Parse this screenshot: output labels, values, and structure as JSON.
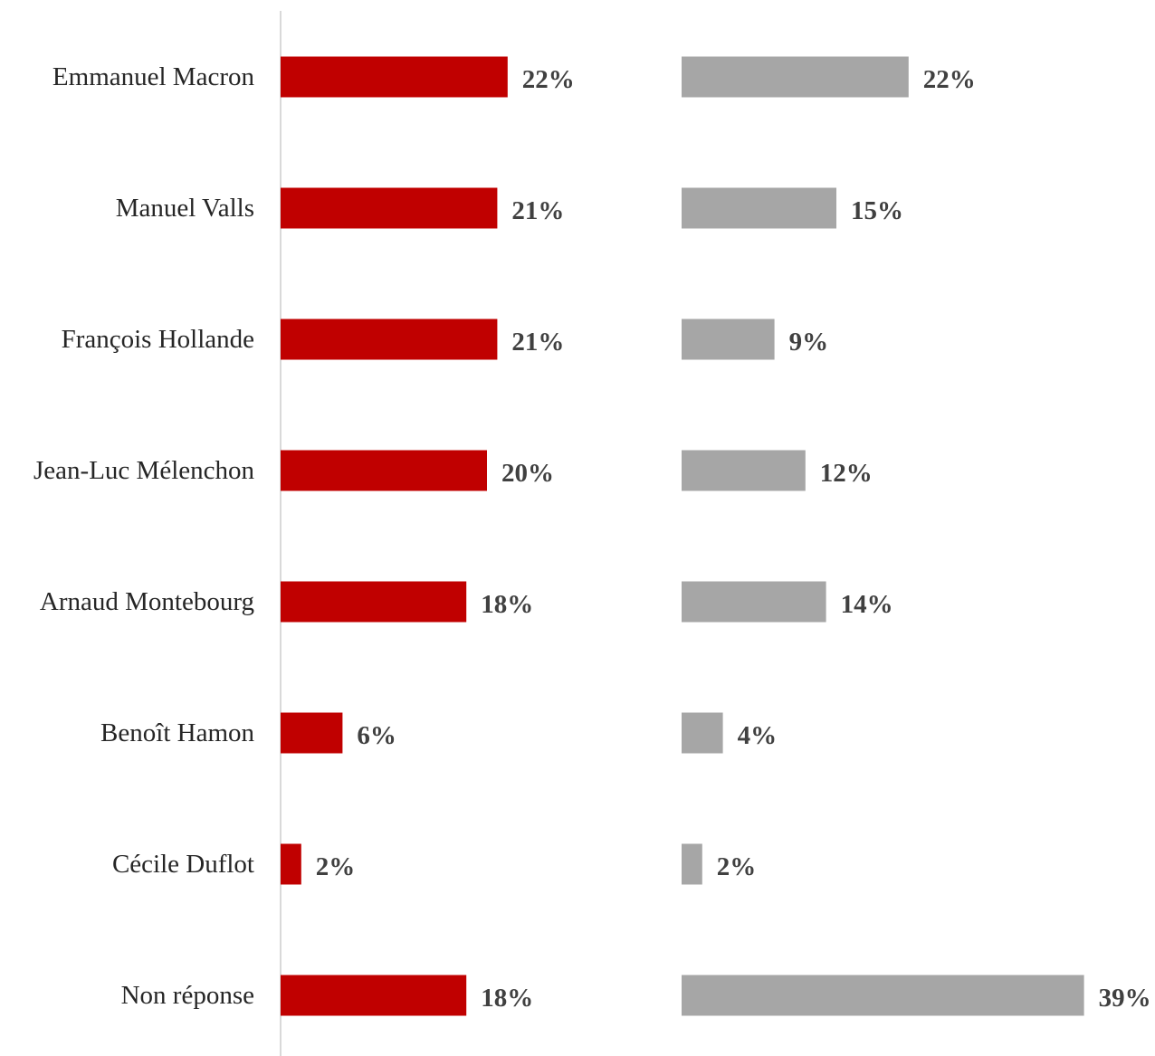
{
  "chart_data": {
    "type": "bar",
    "orientation": "horizontal",
    "categories": [
      "Emmanuel Macron",
      "Manuel Valls",
      "François Hollande",
      "Jean-Luc Mélenchon",
      "Arnaud Montebourg",
      "Benoît Hamon",
      "Cécile Duflot",
      "Non réponse"
    ],
    "series": [
      {
        "values": [
          22,
          21,
          21,
          20,
          18,
          6,
          2,
          18
        ],
        "labels": [
          "22%",
          "21%",
          "21%",
          "20%",
          "18%",
          "6%",
          "2%",
          "18%"
        ],
        "color": "#c00000"
      },
      {
        "values": [
          22,
          15,
          9,
          12,
          14,
          4,
          2,
          39
        ],
        "labels": [
          "22%",
          "15%",
          "9%",
          "12%",
          "14%",
          "4%",
          "2%",
          "39%"
        ],
        "color": "#a6a6a6"
      }
    ],
    "title": "",
    "xlabel": "",
    "ylabel": "",
    "unit": "%",
    "grid": false,
    "legend": "none"
  }
}
